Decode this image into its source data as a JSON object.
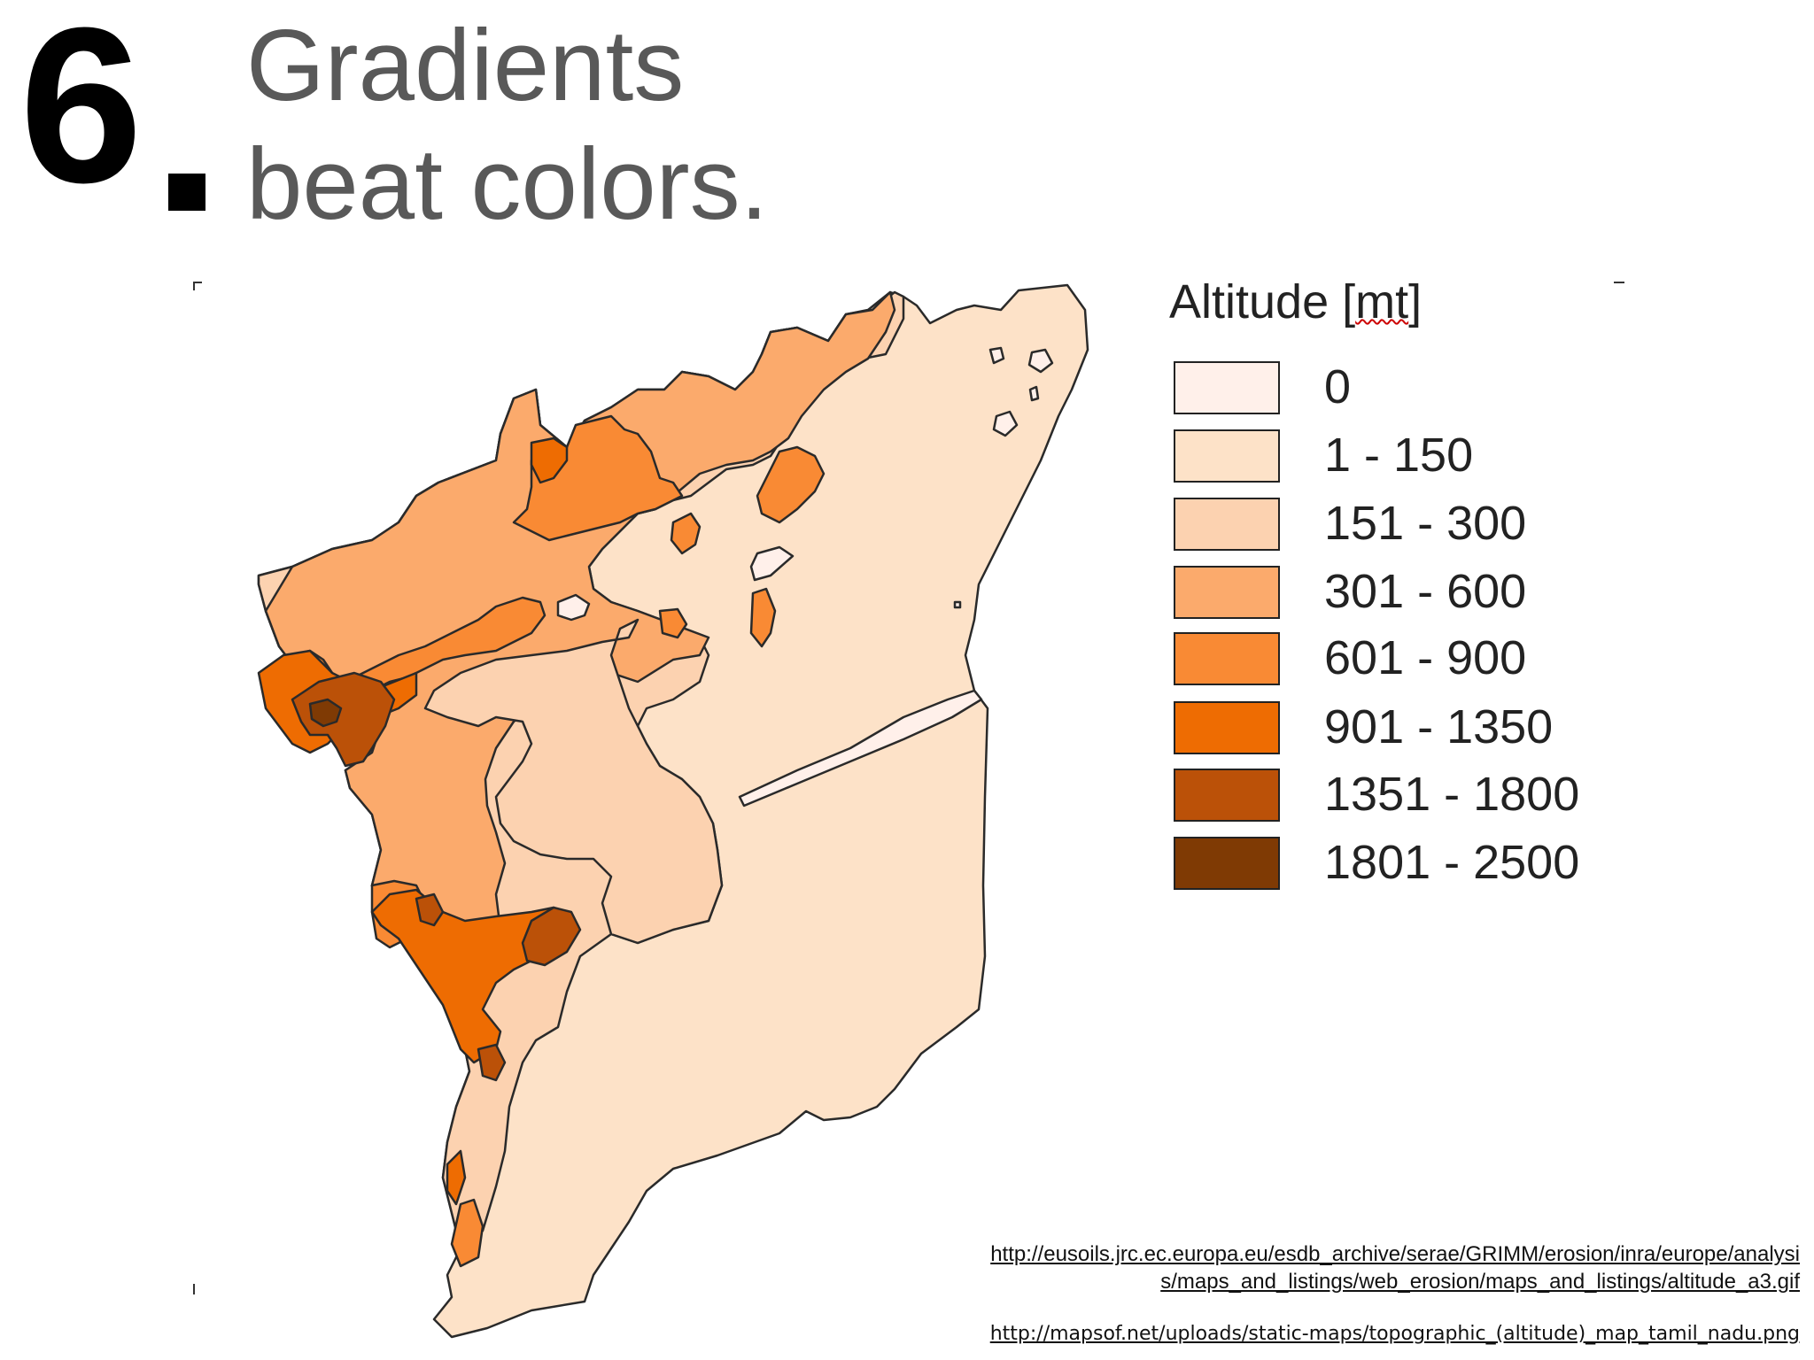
{
  "slide": {
    "number": "6",
    "title_lines": [
      "Gradients",
      "beat colors."
    ]
  },
  "legend": {
    "title_prefix": "Altitude [",
    "title_unit": "mt",
    "title_suffix": "]",
    "items": [
      {
        "label": "0",
        "color": "#fff0ea"
      },
      {
        "label": "1 - 150",
        "color": "#fde2c8"
      },
      {
        "label": "151 - 300",
        "color": "#fcd2b0"
      },
      {
        "label": "301 - 600",
        "color": "#fbaa6c"
      },
      {
        "label": "601 - 900",
        "color": "#f98a34"
      },
      {
        "label": "901 - 1350",
        "color": "#ee6c02"
      },
      {
        "label": "1351 - 1800",
        "color": "#bb5108"
      },
      {
        "label": "1801 - 2500",
        "color": "#7f3a04"
      }
    ]
  },
  "sources": [
    "http://eusoils.jrc.ec.europa.eu/esdb_archive/serae/GRIMM/erosion/inra/europe/analysi",
    "s/maps_and_listings/web_erosion/maps_and_listings/altitude_a3.gif",
    "http://mapsof.net/uploads/static-maps/topographic_(altitude)_map_tamil_nadu.png"
  ]
}
